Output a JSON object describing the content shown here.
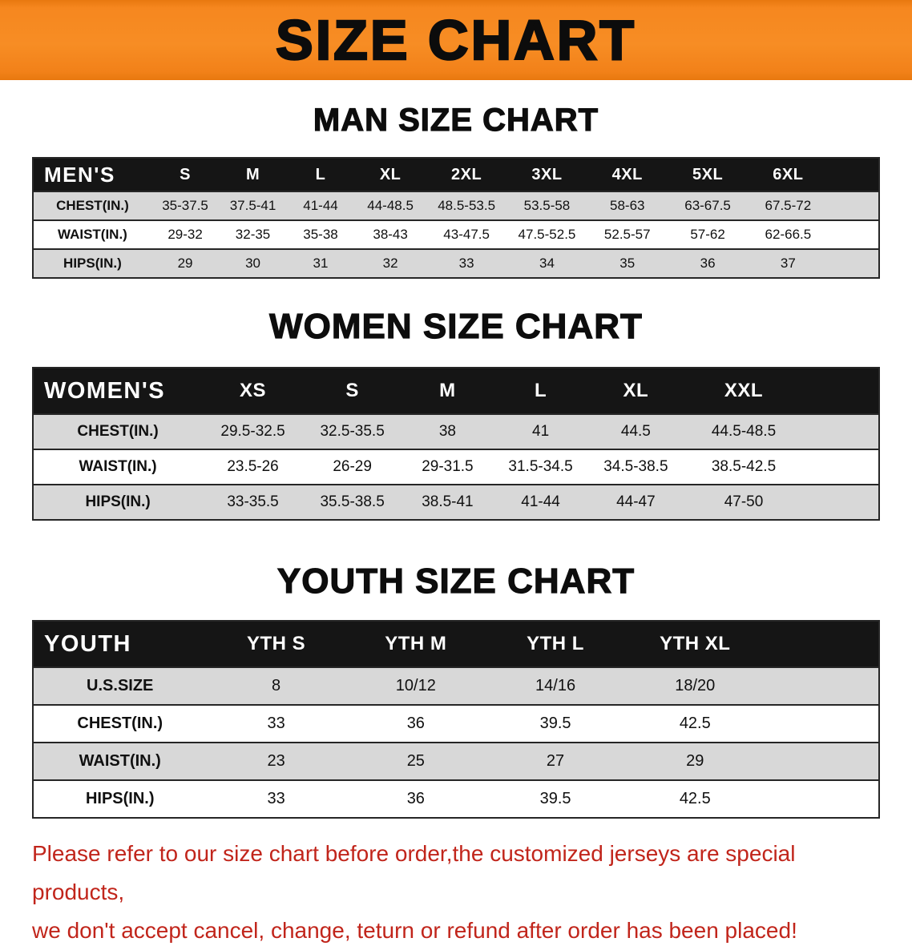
{
  "banner": {
    "title": "SIZE CHART"
  },
  "sections": [
    {
      "heading": "MAN SIZE CHART",
      "table": {
        "header": [
          "MEN'S",
          "S",
          "M",
          "L",
          "XL",
          "2XL",
          "3XL",
          "4XL",
          "5XL",
          "6XL"
        ],
        "rows": [
          {
            "label": "CHEST(IN.)",
            "values": [
              "35-37.5",
              "37.5-41",
              "41-44",
              "44-48.5",
              "48.5-53.5",
              "53.5-58",
              "58-63",
              "63-67.5",
              "67.5-72"
            ]
          },
          {
            "label": "WAIST(IN.)",
            "values": [
              "29-32",
              "32-35",
              "35-38",
              "38-43",
              "43-47.5",
              "47.5-52.5",
              "52.5-57",
              "57-62",
              "62-66.5"
            ]
          },
          {
            "label": "HIPS(IN.)",
            "values": [
              "29",
              "30",
              "31",
              "32",
              "33",
              "34",
              "35",
              "36",
              "37"
            ]
          }
        ]
      }
    },
    {
      "heading": "WOMEN SIZE CHART",
      "table": {
        "header": [
          "WOMEN'S",
          "XS",
          "S",
          "M",
          "L",
          "XL",
          "XXL"
        ],
        "rows": [
          {
            "label": "CHEST(IN.)",
            "values": [
              "29.5-32.5",
              "32.5-35.5",
              "38",
              "41",
              "44.5",
              "44.5-48.5"
            ]
          },
          {
            "label": "WAIST(IN.)",
            "values": [
              "23.5-26",
              "26-29",
              "29-31.5",
              "31.5-34.5",
              "34.5-38.5",
              "38.5-42.5"
            ]
          },
          {
            "label": "HIPS(IN.)",
            "values": [
              "33-35.5",
              "35.5-38.5",
              "38.5-41",
              "41-44",
              "44-47",
              "47-50"
            ]
          }
        ]
      }
    },
    {
      "heading": "YOUTH SIZE CHART",
      "table": {
        "header": [
          "YOUTH",
          "YTH S",
          "YTH M",
          "YTH L",
          "YTH XL"
        ],
        "rows": [
          {
            "label": "U.S.SIZE",
            "values": [
              "8",
              "10/12",
              "14/16",
              "18/20"
            ]
          },
          {
            "label": "CHEST(IN.)",
            "values": [
              "33",
              "36",
              "39.5",
              "42.5"
            ]
          },
          {
            "label": "WAIST(IN.)",
            "values": [
              "23",
              "25",
              "27",
              "29"
            ]
          },
          {
            "label": "HIPS(IN.)",
            "values": [
              "33",
              "36",
              "39.5",
              "42.5"
            ]
          }
        ]
      }
    }
  ],
  "disclaimer": {
    "lines": [
      "Please refer to our size chart before order,the customized jerseys are special products,",
      "we don't accept cancel, change, teturn or refund after order has been placed!"
    ]
  },
  "colors": {
    "banner_bg": "#f6871f",
    "table_header_bg": "#151515",
    "row_shade": "#d8d8d8",
    "disclaimer_red": "#c1251b"
  }
}
